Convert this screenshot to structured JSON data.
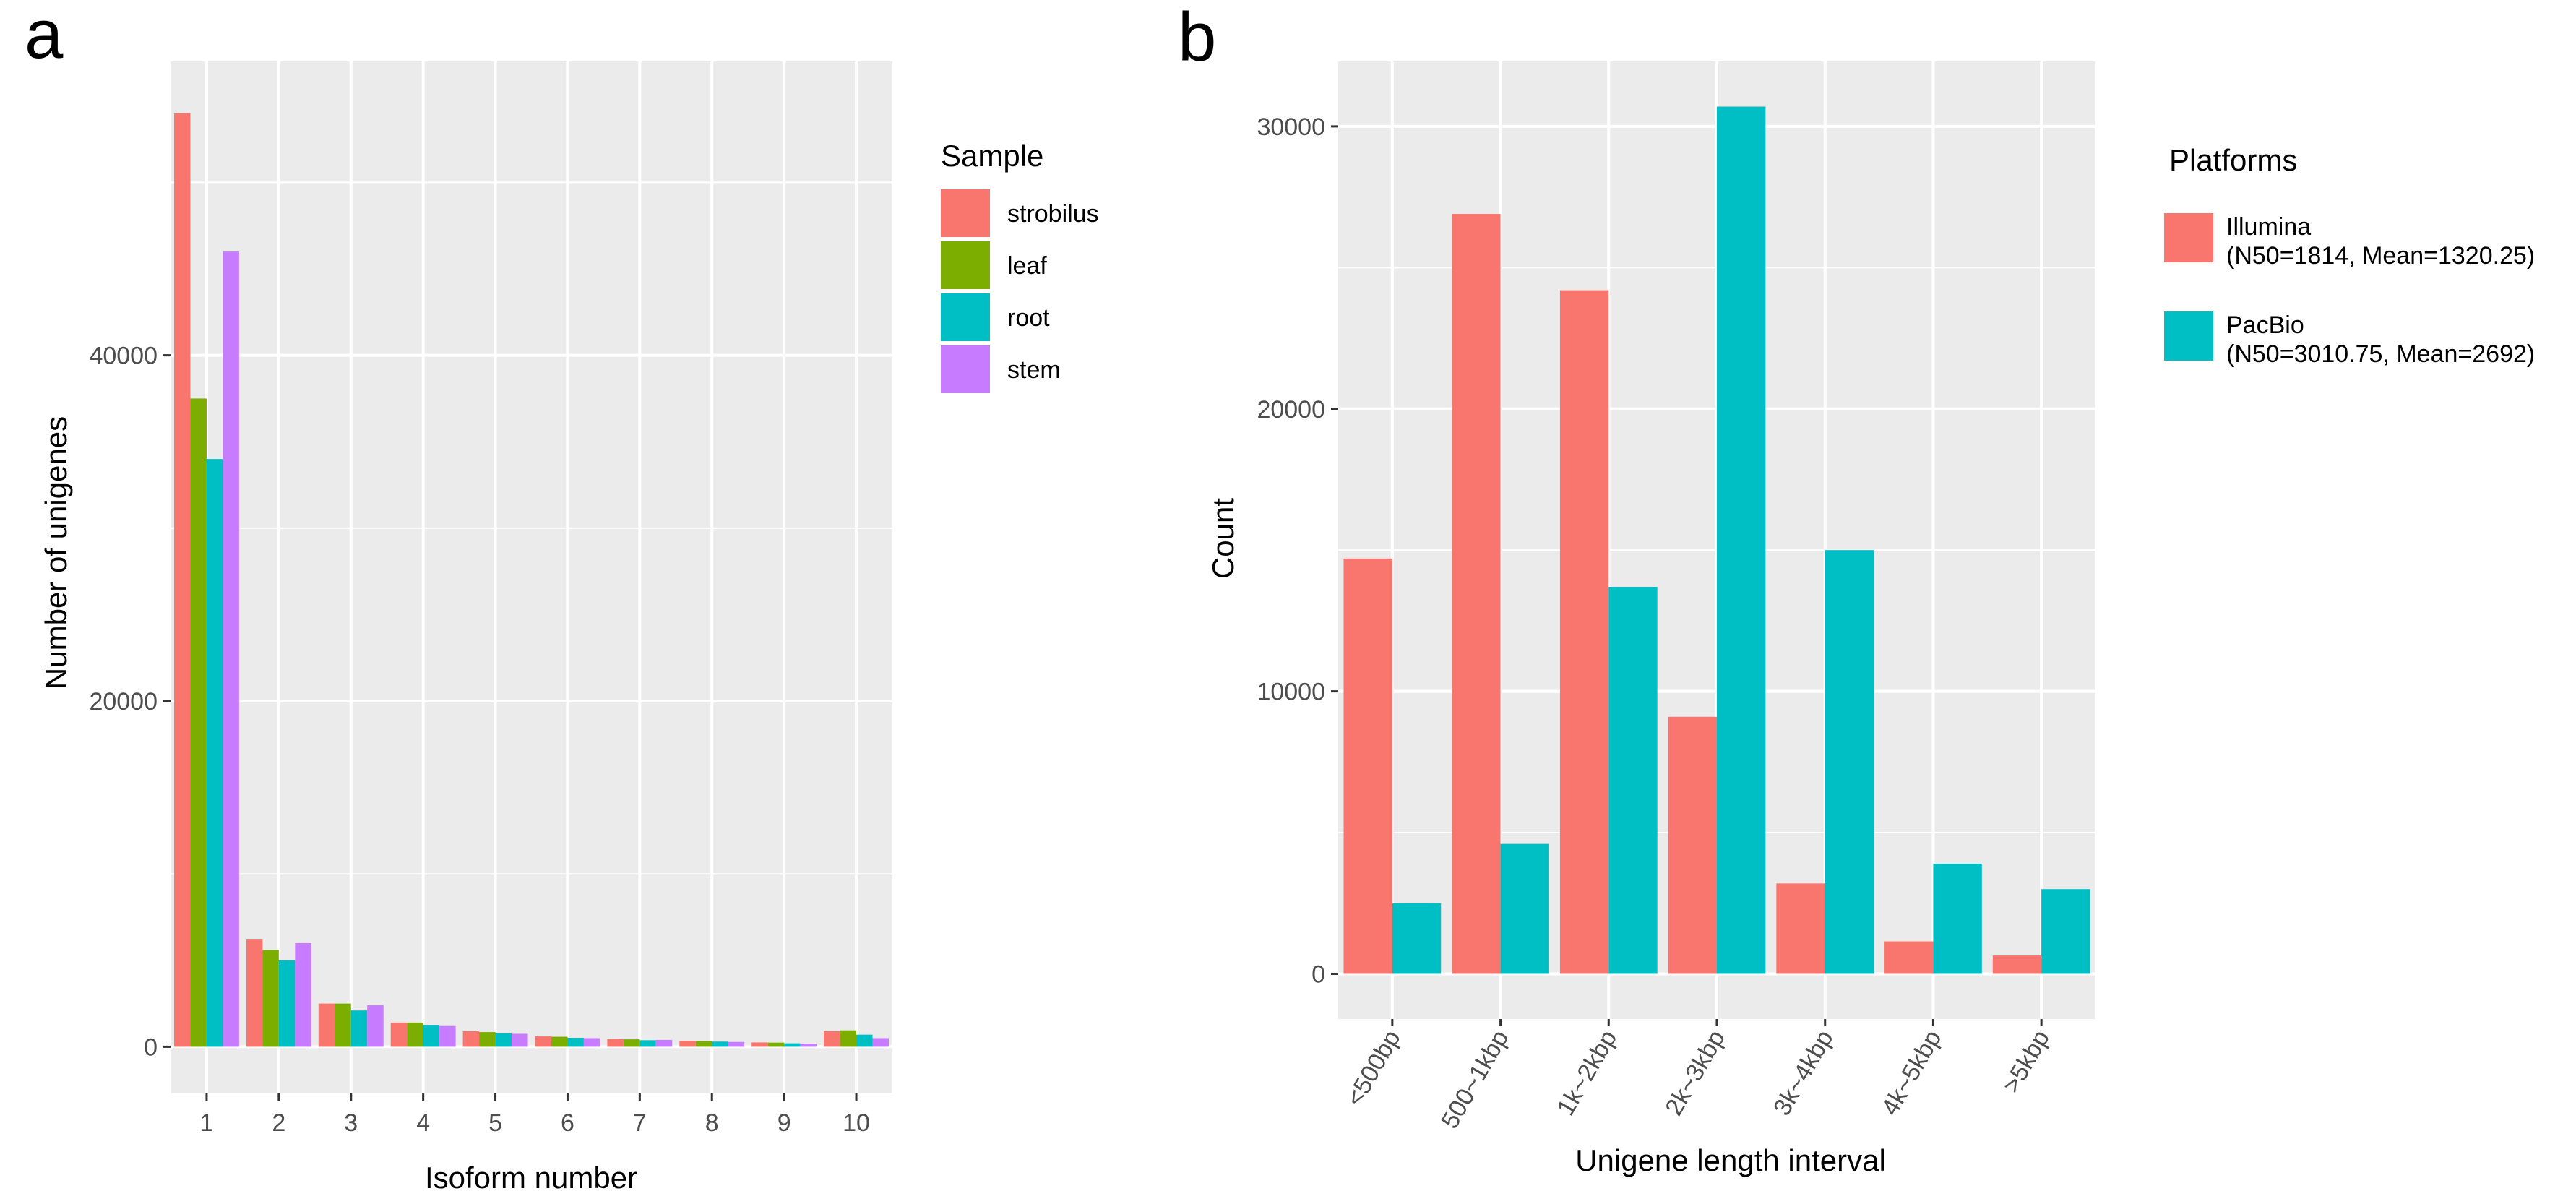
{
  "figure": {
    "panel_a_letter": "a",
    "panel_b_letter": "b"
  },
  "colors": {
    "strobilus": "#F8766D",
    "leaf": "#7CAE00",
    "root": "#00BFC4",
    "stem": "#C77CFF",
    "Illumina": "#F8766D",
    "PacBio": "#00BFC4",
    "panel_bg": "#EBEBEB",
    "grid": "#FFFFFF"
  },
  "chart_data": [
    {
      "id": "a",
      "type": "bar",
      "title": "",
      "xlabel": "Isoform number",
      "ylabel": "Number of unigenes",
      "categories": [
        "1",
        "2",
        "3",
        "4",
        "5",
        "6",
        "7",
        "8",
        "9",
        "10"
      ],
      "y_ticks": [
        0,
        20000,
        40000
      ],
      "y_tick_labels": [
        "0",
        "20000",
        "40000"
      ],
      "ylim": [
        -2700,
        57000
      ],
      "grid": true,
      "legend_title": "Sample",
      "legend_position": "right",
      "series": [
        {
          "name": "strobilus",
          "values": [
            54000,
            6200,
            2500,
            1400,
            900,
            600,
            450,
            350,
            250,
            900
          ]
        },
        {
          "name": "leaf",
          "values": [
            37500,
            5600,
            2500,
            1400,
            850,
            580,
            430,
            330,
            240,
            950
          ]
        },
        {
          "name": "root",
          "values": [
            34000,
            5000,
            2100,
            1250,
            780,
            520,
            380,
            300,
            200,
            700
          ]
        },
        {
          "name": "stem",
          "values": [
            46000,
            6000,
            2400,
            1200,
            750,
            500,
            400,
            280,
            180,
            500
          ]
        }
      ]
    },
    {
      "id": "b",
      "type": "bar",
      "title": "",
      "xlabel": "Unigene length interval",
      "ylabel": "Count",
      "categories": [
        "<500bp",
        "500~1kbp",
        "1k~2kbp",
        "2k~3kbp",
        "3k~4kbp",
        "4k~5kbp",
        ">5kbp"
      ],
      "y_ticks": [
        0,
        10000,
        20000,
        30000
      ],
      "y_tick_labels": [
        "0",
        "10000",
        "20000",
        "30000"
      ],
      "ylim": [
        -1600,
        32300
      ],
      "grid": true,
      "legend_title": "Platforms",
      "legend_position": "right",
      "series": [
        {
          "name": "Illumina",
          "label_line1": "Illumina",
          "label_line2": "(N50=1814, Mean=1320.25)",
          "values": [
            14700,
            26900,
            24200,
            9100,
            3200,
            1150,
            650
          ]
        },
        {
          "name": "PacBio",
          "label_line1": "PacBio",
          "label_line2": "(N50=3010.75, Mean=2692)",
          "values": [
            2500,
            4600,
            13700,
            30700,
            15000,
            3900,
            3000
          ]
        }
      ]
    }
  ]
}
